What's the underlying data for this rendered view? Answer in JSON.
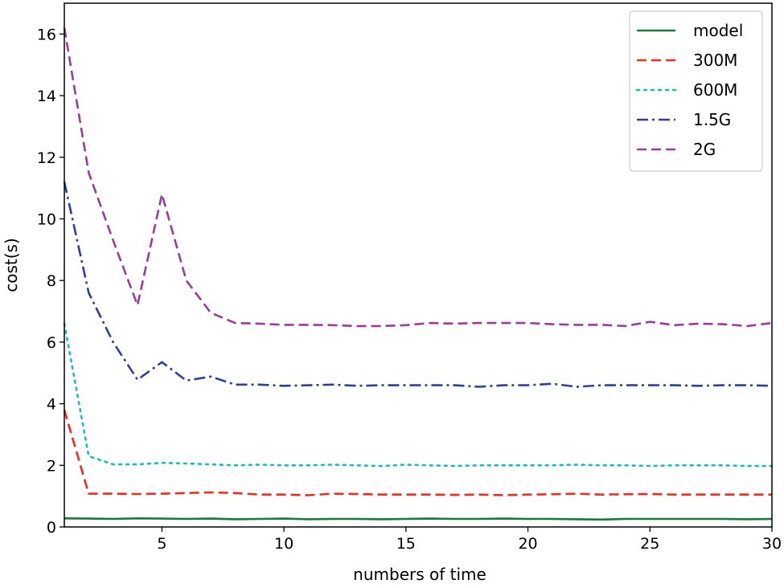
{
  "chart_data": {
    "type": "line",
    "title": "",
    "xlabel": "numbers of time",
    "ylabel": "cost(s)",
    "xlim": [
      1,
      30
    ],
    "ylim": [
      0,
      17
    ],
    "xticks": [
      5,
      10,
      15,
      20,
      25,
      30
    ],
    "yticks": [
      0,
      2,
      4,
      6,
      8,
      10,
      12,
      14,
      16
    ],
    "grid": false,
    "legend_position": "top-right",
    "x": [
      1,
      2,
      3,
      4,
      5,
      6,
      7,
      8,
      9,
      10,
      11,
      12,
      13,
      14,
      15,
      16,
      17,
      18,
      19,
      20,
      21,
      22,
      23,
      24,
      25,
      26,
      27,
      28,
      29,
      30
    ],
    "series": [
      {
        "name": "model",
        "color": "#1a7a3a",
        "style": "solid",
        "values": [
          0.28,
          0.27,
          0.26,
          0.28,
          0.27,
          0.26,
          0.27,
          0.25,
          0.26,
          0.27,
          0.25,
          0.26,
          0.26,
          0.25,
          0.26,
          0.27,
          0.26,
          0.26,
          0.27,
          0.26,
          0.26,
          0.25,
          0.24,
          0.26,
          0.26,
          0.26,
          0.26,
          0.26,
          0.25,
          0.26
        ]
      },
      {
        "name": "300M",
        "color": "#f02a1e",
        "style": "dashed",
        "values": [
          3.8,
          1.08,
          1.08,
          1.07,
          1.08,
          1.1,
          1.12,
          1.1,
          1.05,
          1.05,
          1.03,
          1.08,
          1.07,
          1.05,
          1.05,
          1.05,
          1.04,
          1.05,
          1.03,
          1.05,
          1.06,
          1.08,
          1.05,
          1.06,
          1.07,
          1.05,
          1.05,
          1.05,
          1.05,
          1.05
        ]
      },
      {
        "name": "600M",
        "color": "#17bebe",
        "style": "dotted",
        "values": [
          6.6,
          2.3,
          2.03,
          2.03,
          2.08,
          2.06,
          2.03,
          2.0,
          2.02,
          2.0,
          2.0,
          2.02,
          2.0,
          1.98,
          2.02,
          2.0,
          1.98,
          2.0,
          2.0,
          2.0,
          2.0,
          2.02,
          2.0,
          2.0,
          1.98,
          2.0,
          2.0,
          2.0,
          1.98,
          1.98
        ]
      },
      {
        "name": "1.5G",
        "color": "#2c3f9c",
        "style": "dashdot",
        "values": [
          11.2,
          7.6,
          6.0,
          4.78,
          5.35,
          4.75,
          4.88,
          4.62,
          4.62,
          4.58,
          4.6,
          4.62,
          4.58,
          4.6,
          4.6,
          4.6,
          4.6,
          4.55,
          4.6,
          4.6,
          4.65,
          4.55,
          4.6,
          4.6,
          4.6,
          4.6,
          4.58,
          4.6,
          4.6,
          4.58
        ]
      },
      {
        "name": "2G",
        "color": "#9b3b9b",
        "style": "dashed",
        "values": [
          16.2,
          11.5,
          9.3,
          7.2,
          10.8,
          8.0,
          6.95,
          6.62,
          6.6,
          6.56,
          6.56,
          6.55,
          6.52,
          6.52,
          6.55,
          6.62,
          6.6,
          6.62,
          6.62,
          6.62,
          6.58,
          6.56,
          6.56,
          6.52,
          6.66,
          6.55,
          6.6,
          6.58,
          6.52,
          6.62
        ]
      }
    ]
  }
}
